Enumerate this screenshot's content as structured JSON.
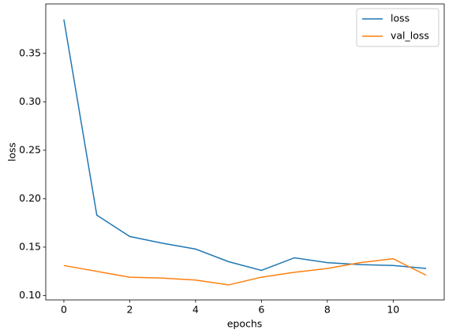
{
  "chart_data": {
    "type": "line",
    "x": [
      0,
      1,
      2,
      3,
      4,
      5,
      6,
      7,
      8,
      9,
      10,
      11
    ],
    "series": [
      {
        "name": "loss",
        "color": "#1f77b4",
        "values": [
          0.385,
          0.183,
          0.161,
          0.154,
          0.148,
          0.135,
          0.126,
          0.139,
          0.134,
          0.132,
          0.131,
          0.128
        ]
      },
      {
        "name": "val_loss",
        "color": "#ff7f0e",
        "values": [
          0.131,
          0.125,
          0.119,
          0.118,
          0.116,
          0.111,
          0.119,
          0.124,
          0.128,
          0.134,
          0.138,
          0.121
        ]
      }
    ],
    "x_label": "epochs",
    "y_label": "loss",
    "xlim": [
      -0.55,
      11.55
    ],
    "ylim": [
      0.0955,
      0.401
    ],
    "xticks": [
      0,
      2,
      4,
      6,
      8,
      10
    ],
    "yticks": [
      {
        "value": 0.1,
        "label": "0.10"
      },
      0.15,
      {
        "value": 0.2,
        "label": "0.20"
      },
      0.25,
      {
        "value": 0.3,
        "label": "0.30"
      },
      0.35
    ],
    "grid": false,
    "legend": "upper-right"
  }
}
